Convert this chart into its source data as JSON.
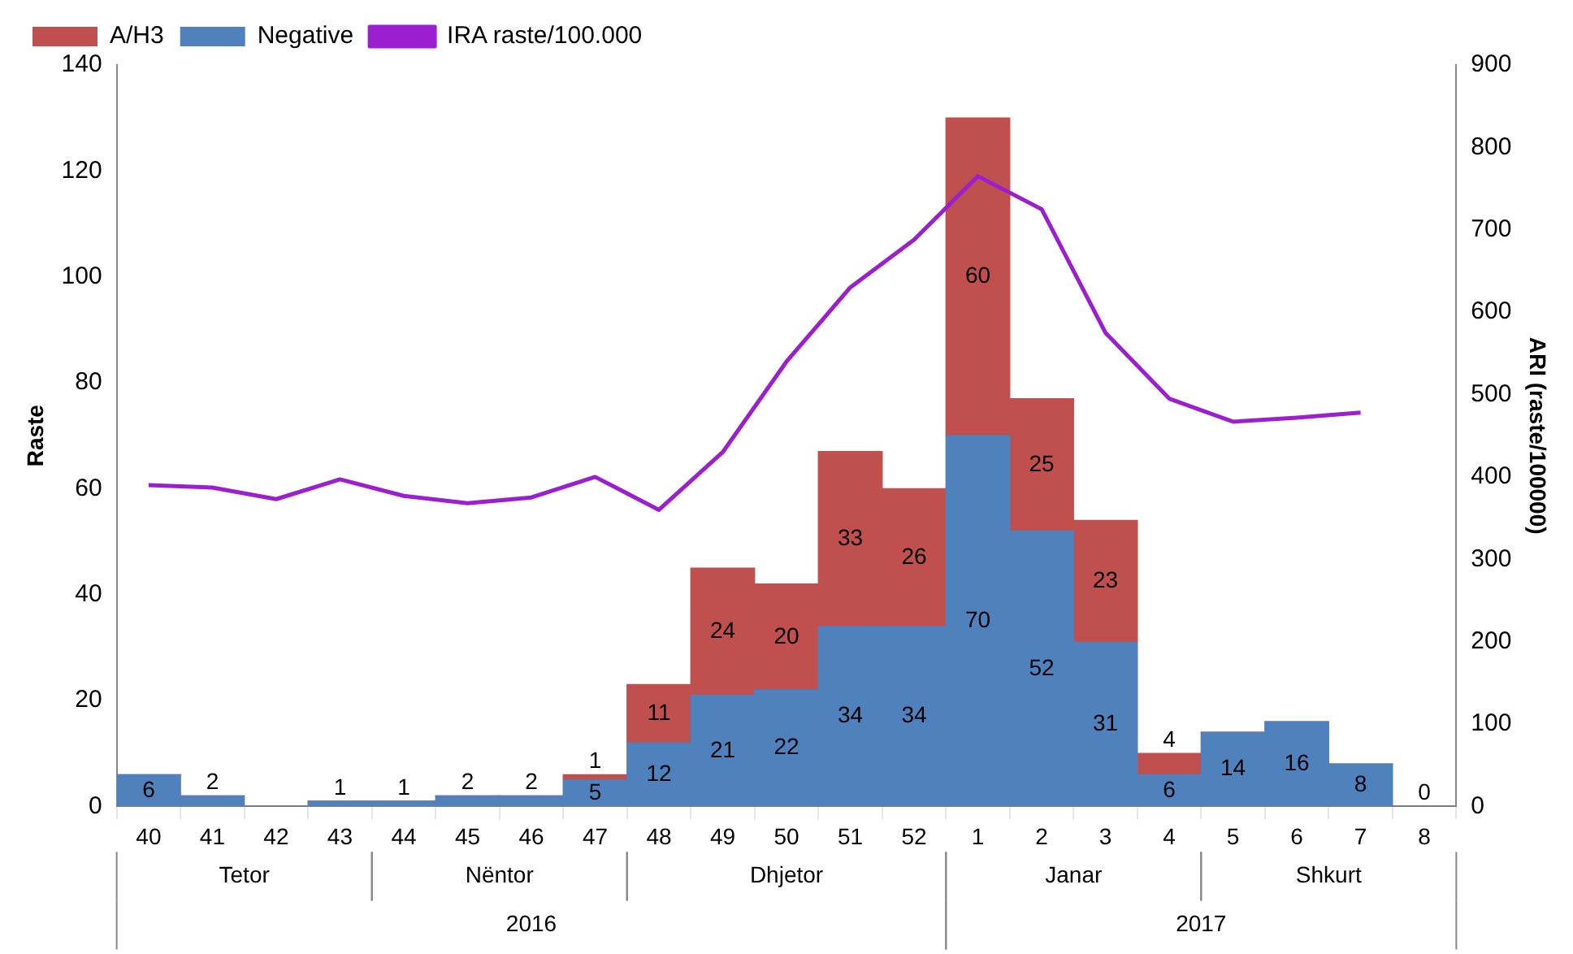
{
  "chart_data": {
    "type": "bar",
    "stacked": true,
    "ylabel": "Raste",
    "y2label": "ARI (raste/100000)",
    "categories": [
      "40",
      "41",
      "42",
      "43",
      "44",
      "45",
      "46",
      "47",
      "48",
      "49",
      "50",
      "51",
      "52",
      "1",
      "2",
      "3",
      "4",
      "5",
      "6",
      "7",
      "8"
    ],
    "series": [
      {
        "name": "Negative",
        "color": "#4f81bd",
        "values": [
          6,
          2,
          0,
          1,
          1,
          2,
          2,
          5,
          12,
          21,
          22,
          34,
          34,
          70,
          52,
          31,
          6,
          14,
          16,
          8,
          0
        ],
        "value_labels": [
          "6",
          "2",
          null,
          "1",
          "1",
          "2",
          "2",
          "5",
          "12",
          "21",
          "22",
          "34",
          "34",
          "70",
          "52",
          "31",
          "6",
          "14",
          "16",
          "8",
          "0"
        ]
      },
      {
        "name": "A/H3",
        "color": "#c0504d",
        "values": [
          0,
          0,
          0,
          0,
          0,
          0,
          0,
          1,
          11,
          24,
          20,
          33,
          26,
          60,
          25,
          23,
          4,
          0,
          0,
          0,
          0
        ],
        "value_labels": [
          null,
          null,
          null,
          null,
          null,
          null,
          null,
          "1",
          "11",
          "24",
          "20",
          "33",
          "26",
          "60",
          "25",
          "23",
          "4",
          null,
          null,
          null,
          null
        ]
      },
      {
        "name": "IRA raste/100.000",
        "type": "line",
        "axis": "y2",
        "color": "#9b1fd1",
        "values": [
          390,
          387,
          373,
          397,
          377,
          368,
          375,
          400,
          360,
          430,
          540,
          630,
          688,
          765,
          725,
          575,
          495,
          467,
          472,
          478,
          null
        ]
      }
    ],
    "ylim": [
      0,
      140
    ],
    "yticks": [
      0,
      20,
      40,
      60,
      80,
      100,
      120,
      140
    ],
    "y2lim": [
      0,
      900
    ],
    "y2ticks": [
      0,
      100,
      200,
      300,
      400,
      500,
      600,
      700,
      800,
      900
    ],
    "grid": false,
    "legend": "top left",
    "marker": "none",
    "annotations": [
      "Tetor",
      "Nëntor",
      "Dhjetor",
      "Janar",
      "Shkurt",
      "2016",
      "2017"
    ]
  }
}
